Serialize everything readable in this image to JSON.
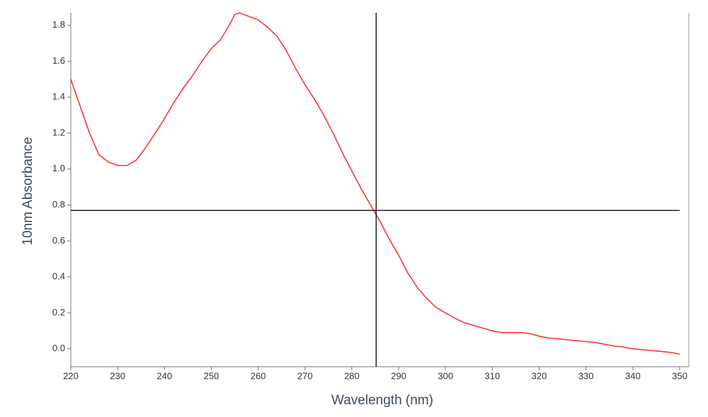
{
  "chart_data": {
    "type": "line",
    "x_label": "Wavelength (nm)",
    "y_label": "10nm Absorbance",
    "x": [
      220,
      222,
      224,
      226,
      228,
      230,
      232,
      234,
      236,
      238,
      240,
      242,
      244,
      246,
      248,
      250,
      252,
      254,
      255,
      256,
      258,
      260,
      262,
      264,
      266,
      268,
      270,
      272,
      274,
      276,
      278,
      280,
      282,
      284,
      286,
      288,
      290,
      292,
      294,
      296,
      298,
      300,
      302,
      304,
      306,
      308,
      310,
      312,
      314,
      316,
      318,
      320,
      322,
      324,
      326,
      328,
      330,
      332,
      334,
      336,
      338,
      340,
      342,
      344,
      346,
      348,
      350
    ],
    "series": [
      {
        "color": "#ff2a2a",
        "values": [
          1.5,
          1.35,
          1.2,
          1.08,
          1.04,
          1.02,
          1.02,
          1.05,
          1.12,
          1.2,
          1.28,
          1.37,
          1.45,
          1.52,
          1.6,
          1.67,
          1.72,
          1.81,
          1.86,
          1.87,
          1.85,
          1.83,
          1.79,
          1.74,
          1.66,
          1.56,
          1.47,
          1.39,
          1.3,
          1.2,
          1.09,
          0.99,
          0.89,
          0.8,
          0.71,
          0.61,
          0.52,
          0.42,
          0.34,
          0.28,
          0.23,
          0.2,
          0.17,
          0.145,
          0.13,
          0.115,
          0.1,
          0.09,
          0.09,
          0.09,
          0.085,
          0.07,
          0.06,
          0.055,
          0.05,
          0.045,
          0.04,
          0.035,
          0.025,
          0.015,
          0.01,
          0.0,
          -0.005,
          -0.01,
          -0.015,
          -0.02,
          -0.03
        ]
      }
    ],
    "xlim": [
      220,
      350
    ],
    "ylim": [
      -0.1,
      1.87
    ],
    "xticks": [
      220,
      230,
      240,
      250,
      260,
      270,
      280,
      290,
      300,
      310,
      320,
      330,
      340,
      350
    ],
    "yticks": [
      {
        "value": 0,
        "label": "0.0"
      },
      0.2,
      0.4,
      0.6,
      0.8,
      {
        "value": 1,
        "label": "1.0"
      },
      1.2,
      1.4,
      1.6,
      1.8
    ],
    "crosshair": {
      "x": 285.2,
      "y": 0.77
    }
  }
}
